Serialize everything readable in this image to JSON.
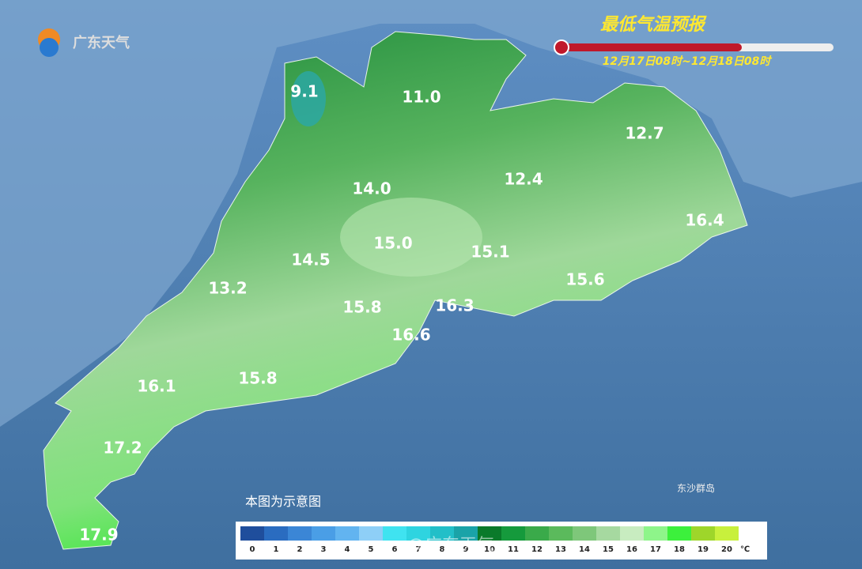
{
  "logo": "广东天气",
  "title": "最低气温预报",
  "subtitle": "12月17日08时~12月18日08时",
  "labels": [
    "9.1",
    "11.0",
    "12.7",
    "14.0",
    "12.4",
    "16.4",
    "15.0",
    "14.5",
    "15.1",
    "13.2",
    "15.6",
    "15.8",
    "16.3",
    "16.6",
    "16.1",
    "15.8",
    "17.2",
    "17.9"
  ],
  "island": "东沙群岛",
  "note": "本图为示意图",
  "watermark": "@广东天气",
  "legend": {
    "scale": [
      {
        "value": 0,
        "color": "#1f4e9c"
      },
      {
        "value": 1,
        "color": "#2a6cc0"
      },
      {
        "value": 2,
        "color": "#3b86d6"
      },
      {
        "value": 3,
        "color": "#4a9ee6"
      },
      {
        "value": 4,
        "color": "#62b4f0"
      },
      {
        "value": 5,
        "color": "#8ecff7"
      },
      {
        "value": 6,
        "color": "#3fe3f0"
      },
      {
        "value": 7,
        "color": "#2ed4e0"
      },
      {
        "value": 8,
        "color": "#22bfc8"
      },
      {
        "value": 9,
        "color": "#1aa3a8"
      },
      {
        "value": 10,
        "color": "#0a7a2a"
      },
      {
        "value": 11,
        "color": "#159a3c"
      },
      {
        "value": 12,
        "color": "#3aaa4a"
      },
      {
        "value": 13,
        "color": "#5bba5c"
      },
      {
        "value": 14,
        "color": "#7ec77a"
      },
      {
        "value": 15,
        "color": "#a6d9a0"
      },
      {
        "value": 16,
        "color": "#c8ecc0"
      },
      {
        "value": 17,
        "color": "#8ef58a"
      },
      {
        "value": 18,
        "color": "#3cf03c"
      },
      {
        "value": 19,
        "color": "#9ed62a"
      },
      {
        "value": 20,
        "color": "#c8f03c"
      }
    ],
    "unit": "℃"
  }
}
